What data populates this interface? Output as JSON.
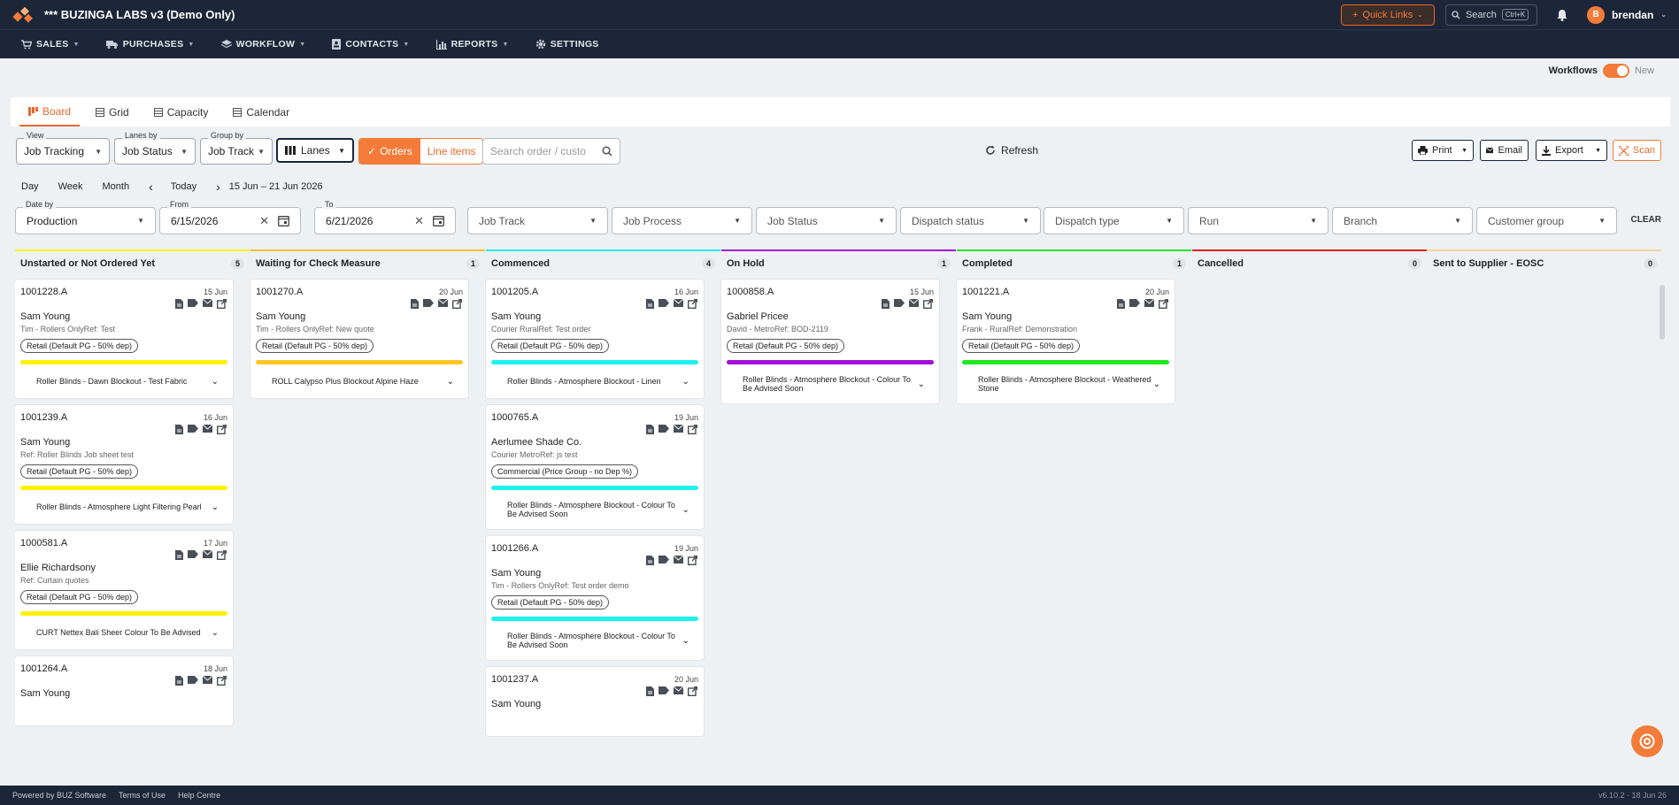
{
  "app": {
    "title": "*** BUZINGA LABS v3 (Demo Only)"
  },
  "topbar": {
    "quick_links": "Quick Links",
    "search_label": "Search",
    "search_kbd": "Ctrl+K",
    "user_initial": "B",
    "user_name": "brendan"
  },
  "nav": [
    {
      "label": "SALES",
      "icon": "cart-icon"
    },
    {
      "label": "PURCHASES",
      "icon": "truck-icon"
    },
    {
      "label": "WORKFLOW",
      "icon": "layers-icon"
    },
    {
      "label": "CONTACTS",
      "icon": "contact-card-icon"
    },
    {
      "label": "REPORTS",
      "icon": "bar-chart-icon"
    },
    {
      "label": "SETTINGS",
      "icon": "gear-icon"
    }
  ],
  "workflows_toggle": {
    "label": "Workflows",
    "state": "on",
    "suffix": "New"
  },
  "tabs": [
    {
      "label": "Board",
      "active": true
    },
    {
      "label": "Grid",
      "active": false
    },
    {
      "label": "Capacity",
      "active": false
    },
    {
      "label": "Calendar",
      "active": false
    }
  ],
  "controls": {
    "view": {
      "label": "View",
      "value": "Job Tracking"
    },
    "lanes_by": {
      "label": "Lanes by",
      "value": "Job Status"
    },
    "group_by": {
      "label": "Group by",
      "value": "Job Track"
    },
    "lanes_button": "Lanes",
    "orders": "Orders",
    "line_items": "Line items",
    "search_placeholder": "Search order / custo",
    "refresh": "Refresh",
    "print": "Print",
    "email": "Email",
    "export": "Export",
    "scan": "Scan"
  },
  "date_nav": {
    "day": "Day",
    "week": "Week",
    "month": "Month",
    "prev": "‹",
    "today": "Today",
    "next": "›",
    "range": "15 Jun – 21 Jun 2026"
  },
  "filters": {
    "date_by": {
      "label": "Date by",
      "value": "Production"
    },
    "from": {
      "label": "From",
      "value": "6/15/2026"
    },
    "to": {
      "label": "To",
      "value": "6/21/2026"
    },
    "job_track": "Job Track",
    "job_process": "Job Process",
    "job_status": "Job Status",
    "dispatch_status": "Dispatch status",
    "dispatch_type": "Dispatch type",
    "run": "Run",
    "branch": "Branch",
    "customer_group": "Customer group",
    "clear": "CLEAR"
  },
  "lanes": [
    {
      "title": "Unstarted or Not Ordered Yet",
      "count": "5",
      "color": "#fff200",
      "cards": [
        {
          "no": "1001228.A",
          "date": "15 Jun",
          "customer": "Sam Young",
          "ref": "Tim - Rollers OnlyRef: Test",
          "pill": "Retail (Default PG - 50% dep)",
          "item": "Roller Blinds - Dawn Blockout - Test Fabric"
        },
        {
          "no": "1001239.A",
          "date": "16 Jun",
          "customer": "Sam Young",
          "ref": "Ref: Roller Blinds Job sheet test",
          "pill": "Retail (Default PG - 50% dep)",
          "item": "Roller Blinds - Atmosphere Light Filtering Pearl"
        },
        {
          "no": "1000581.A",
          "date": "17 Jun",
          "customer": "Ellie Richardsony",
          "ref": "Ref: Curtain quotes",
          "pill": "Retail (Default PG - 50% dep)",
          "item": "CURT Nettex Bali Sheer Colour To Be Advised"
        },
        {
          "no": "1001264.A",
          "date": "18 Jun",
          "customer": "Sam Young",
          "ref": "",
          "pill": "",
          "item": ""
        }
      ]
    },
    {
      "title": "Waiting for Check Measure",
      "count": "1",
      "color": "#ffc524",
      "cards": [
        {
          "no": "1001270.A",
          "date": "20 Jun",
          "customer": "Sam Young",
          "ref": "Tim - Rollers OnlyRef: New quote",
          "pill": "Retail (Default PG - 50% dep)",
          "item": "ROLL Calypso Plus Blockout Alpine Haze"
        }
      ]
    },
    {
      "title": "Commenced",
      "count": "4",
      "color": "#1ff0f0",
      "cards": [
        {
          "no": "1001205.A",
          "date": "16 Jun",
          "customer": "Sam Young",
          "ref": "Courier RuralRef: Test order",
          "pill": "Retail (Default PG - 50% dep)",
          "item": "Roller Blinds - Atmosphere Blockout - Linen"
        },
        {
          "no": "1000765.A",
          "date": "19 Jun",
          "customer": "Aerlumee Shade Co.",
          "ref": "Courier MetroRef: js test",
          "pill": "Commercial (Price Group - no Dep %)",
          "item": "Roller Blinds - Atmosphere Blockout - Colour To Be Advised Soon"
        },
        {
          "no": "1001266.A",
          "date": "19 Jun",
          "customer": "Sam Young",
          "ref": "Tim - Rollers OnlyRef: Test order demo",
          "pill": "Retail (Default PG - 50% dep)",
          "item": "Roller Blinds - Atmosphere Blockout - Colour To Be Advised Soon"
        },
        {
          "no": "1001237.A",
          "date": "20 Jun",
          "customer": "Sam Young",
          "ref": "",
          "pill": "",
          "item": ""
        }
      ]
    },
    {
      "title": "On Hold",
      "count": "1",
      "color": "#a40fd8",
      "cards": [
        {
          "no": "1000858.A",
          "date": "15 Jun",
          "customer": "Gabriel Pricee",
          "ref": "David - MetroRef: BOD-2119",
          "pill": "Retail (Default PG - 50% dep)",
          "item": "Roller Blinds - Atmosphere Blockout - Colour To Be Advised Soon"
        }
      ]
    },
    {
      "title": "Completed",
      "count": "1",
      "color": "#1fe81f",
      "cards": [
        {
          "no": "1001221.A",
          "date": "20 Jun",
          "customer": "Sam Young",
          "ref": "Frank - RuralRef: Demonstration",
          "pill": "Retail (Default PG - 50% dep)",
          "item": "Roller Blinds - Atmosphere Blockout - Weathered Stone"
        }
      ]
    },
    {
      "title": "Cancelled",
      "count": "0",
      "color": "#e21f1f",
      "cards": []
    },
    {
      "title": "Sent to Supplier - EOSC",
      "count": "0",
      "color": "#f2d39c",
      "cards": []
    }
  ],
  "footer": {
    "powered": "Powered by BUZ Software",
    "terms": "Terms of Use",
    "help": "Help Centre",
    "version": "v6.10.2 · 18 Jun 26"
  },
  "colors": {
    "accent": "#f47b39",
    "topbar": "#1c2638"
  }
}
